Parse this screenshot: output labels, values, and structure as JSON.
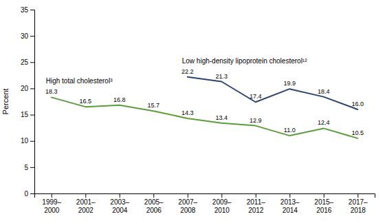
{
  "chart_data": {
    "type": "line",
    "categories": [
      "1999–2000",
      "2001–2002",
      "2003–2004",
      "2005–2006",
      "2007–2008",
      "2009–2010",
      "2011–2012",
      "2013–2014",
      "2015–2016",
      "2017–2018"
    ],
    "series": [
      {
        "name": "High total cholesterol³",
        "color": "#5a9e3a",
        "values": [
          18.3,
          16.5,
          16.8,
          15.7,
          14.3,
          13.4,
          12.9,
          11.0,
          12.4,
          10.5
        ],
        "value_labels": [
          "18.3",
          "16.5",
          "16.8",
          "15.7",
          "14.3",
          "13.4",
          "12.9",
          "11.0",
          "12.4",
          "10.5"
        ]
      },
      {
        "name": "Low high-density lipoprotein cholesterol¹²",
        "color": "#2b4470",
        "values": [
          null,
          null,
          null,
          null,
          22.2,
          21.3,
          17.4,
          19.9,
          18.4,
          16.0
        ],
        "value_labels": [
          null,
          null,
          null,
          null,
          "22.2",
          "21.3",
          "17.4",
          "19.9",
          "18.4",
          "16.0"
        ]
      }
    ],
    "y_label": "Percent",
    "ylim": [
      0,
      35
    ],
    "yticks": [
      0,
      5,
      10,
      15,
      20,
      25,
      30,
      35
    ],
    "data_labels": true,
    "grid": false
  }
}
